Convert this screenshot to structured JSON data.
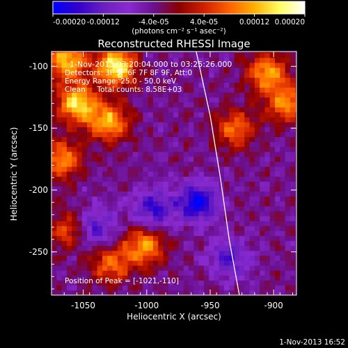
{
  "colorbar": {
    "ticks": [
      {
        "value": -0.0002,
        "label": "-0.00020"
      },
      {
        "value": -0.00012,
        "label": "-0.00012"
      },
      {
        "value": -4e-05,
        "label": "-4.0e-05"
      },
      {
        "value": 4e-05,
        "label": "4.0e-05"
      },
      {
        "value": 0.00012,
        "label": "0.00012"
      },
      {
        "value": 0.0002,
        "label": "0.00020"
      }
    ],
    "range": [
      -0.0002,
      0.0002
    ],
    "unit_label": "(photons cm⁻² s⁻¹ asec⁻²)",
    "colors": [
      "#0000ff",
      "#3300cc",
      "#6a1fbf",
      "#8a2ad0",
      "#6a1090",
      "#8a0000",
      "#d02000",
      "#ff6000",
      "#ffb000",
      "#ffff60",
      "#ffffff"
    ]
  },
  "chart_data": {
    "type": "heatmap",
    "title": "Reconstructed RHESSI Image",
    "xlabel": "Heliocentric X (arcsec)",
    "ylabel": "Heliocentric Y (arcsec)",
    "xlim": [
      -1075,
      -882
    ],
    "ylim": [
      -285,
      -88
    ],
    "xticks": [
      {
        "value": -1050,
        "label": "-1050"
      },
      {
        "value": -1000,
        "label": "-1000"
      },
      {
        "value": -950,
        "label": "-950"
      },
      {
        "value": -900,
        "label": "-900"
      }
    ],
    "yticks": [
      {
        "value": -100,
        "label": "-100"
      },
      {
        "value": -150,
        "label": "-150"
      },
      {
        "value": -200,
        "label": "-200"
      },
      {
        "value": -250,
        "label": "-250"
      }
    ],
    "annotations": [
      "1-Nov-2013 03:20:04.000 to 03:25:26.000",
      "Detectors: 3F 5F 6F 7F 8F 9F, Att:0",
      "Energy Range: 25.0 - 50.0 keV",
      "Clean     Total counts: 8.58E+03",
      "Position of Peak = [-1021,-110]"
    ],
    "peak_position": [
      -1021,
      -110
    ],
    "limb_curve": [
      [
        -961,
        -88
      ],
      [
        -950,
        -140
      ],
      [
        -942,
        -190
      ],
      [
        -935,
        -240
      ],
      [
        -927,
        -285
      ]
    ],
    "sources": [
      {
        "x": -1024,
        "y": -100,
        "amplitude": 0.00021
      },
      {
        "x": -1055,
        "y": -130,
        "amplitude": 0.00019
      },
      {
        "x": -1063,
        "y": -95,
        "amplitude": 0.00017
      },
      {
        "x": -1030,
        "y": -145,
        "amplitude": 0.00016
      },
      {
        "x": -905,
        "y": -105,
        "amplitude": 0.00015
      },
      {
        "x": -890,
        "y": -130,
        "amplitude": 0.00014
      },
      {
        "x": -930,
        "y": -150,
        "amplitude": 0.00012
      },
      {
        "x": -1067,
        "y": -175,
        "amplitude": 0.00014
      },
      {
        "x": -1002,
        "y": -245,
        "amplitude": 0.00015
      },
      {
        "x": -1028,
        "y": -260,
        "amplitude": 0.00012
      },
      {
        "x": -1062,
        "y": -232,
        "amplitude": 0.0001
      },
      {
        "x": -960,
        "y": -210,
        "amplitude": -0.00016
      },
      {
        "x": -995,
        "y": -215,
        "amplitude": -0.00012
      },
      {
        "x": -1040,
        "y": -230,
        "amplitude": -0.0001
      },
      {
        "x": -935,
        "y": -255,
        "amplitude": -0.0001
      }
    ]
  },
  "footer_timestamp": "1-Nov-2013 16:52"
}
